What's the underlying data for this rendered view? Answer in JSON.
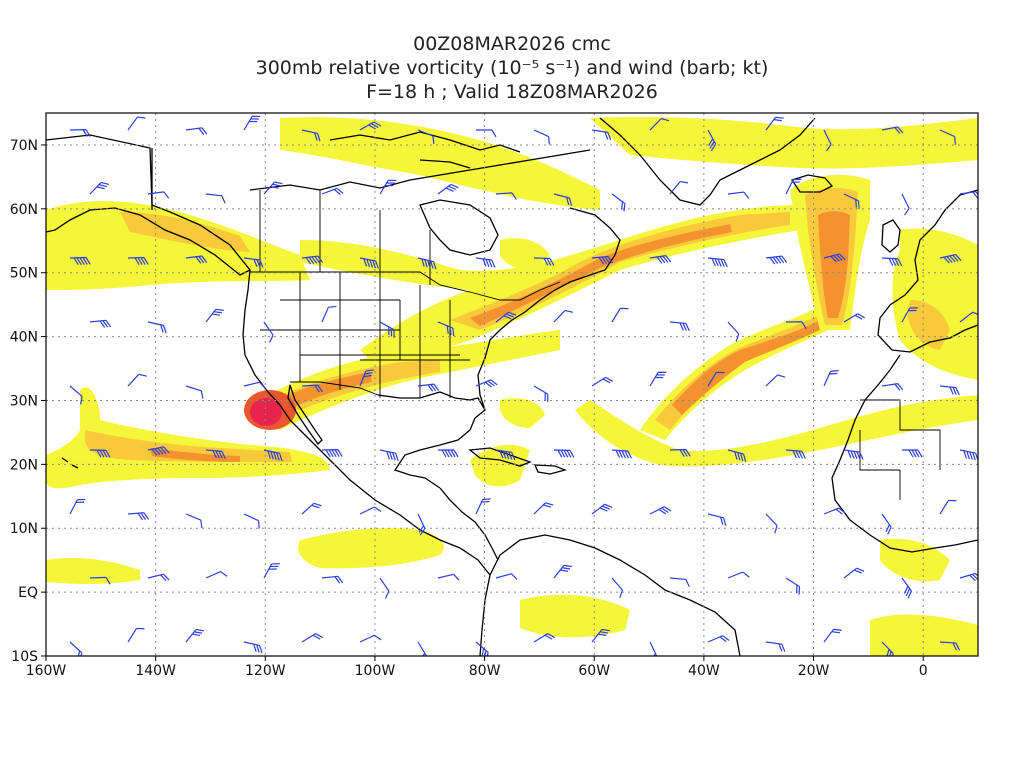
{
  "title": {
    "line1": "00Z08MAR2026 cmc",
    "line2": "300mb relative vorticity (10⁻⁵ s⁻¹) and wind (barb; kt)",
    "line3": "F=18 h ; Valid 18Z08MAR2026"
  },
  "map": {
    "lon_range": [
      -160,
      10
    ],
    "lat_range": [
      -10,
      75
    ],
    "grid": "dotted",
    "lat_ticks": [
      {
        "value": 70,
        "label": "70N"
      },
      {
        "value": 60,
        "label": "60N"
      },
      {
        "value": 50,
        "label": "50N"
      },
      {
        "value": 40,
        "label": "40N"
      },
      {
        "value": 30,
        "label": "30N"
      },
      {
        "value": 20,
        "label": "20N"
      },
      {
        "value": 10,
        "label": "10N"
      },
      {
        "value": 0,
        "label": "EQ"
      },
      {
        "value": -10,
        "label": "10S"
      }
    ],
    "lon_ticks": [
      {
        "value": -160,
        "label": "160W"
      },
      {
        "value": -140,
        "label": "140W"
      },
      {
        "value": -120,
        "label": "120W"
      },
      {
        "value": -100,
        "label": "100W"
      },
      {
        "value": -80,
        "label": "80W"
      },
      {
        "value": -60,
        "label": "60W"
      },
      {
        "value": -40,
        "label": "40W"
      },
      {
        "value": -20,
        "label": "20W"
      },
      {
        "value": 0,
        "label": "0"
      }
    ]
  },
  "colors": {
    "shade_light": "#f5f53a",
    "shade_mid": "#f9c93c",
    "shade_orange": "#f3922e",
    "shade_deep": "#e8572e",
    "shade_max": "#e8244c",
    "barb": "#2a3fe0",
    "coast": "#000000",
    "grid": "#8a8a8a"
  }
}
